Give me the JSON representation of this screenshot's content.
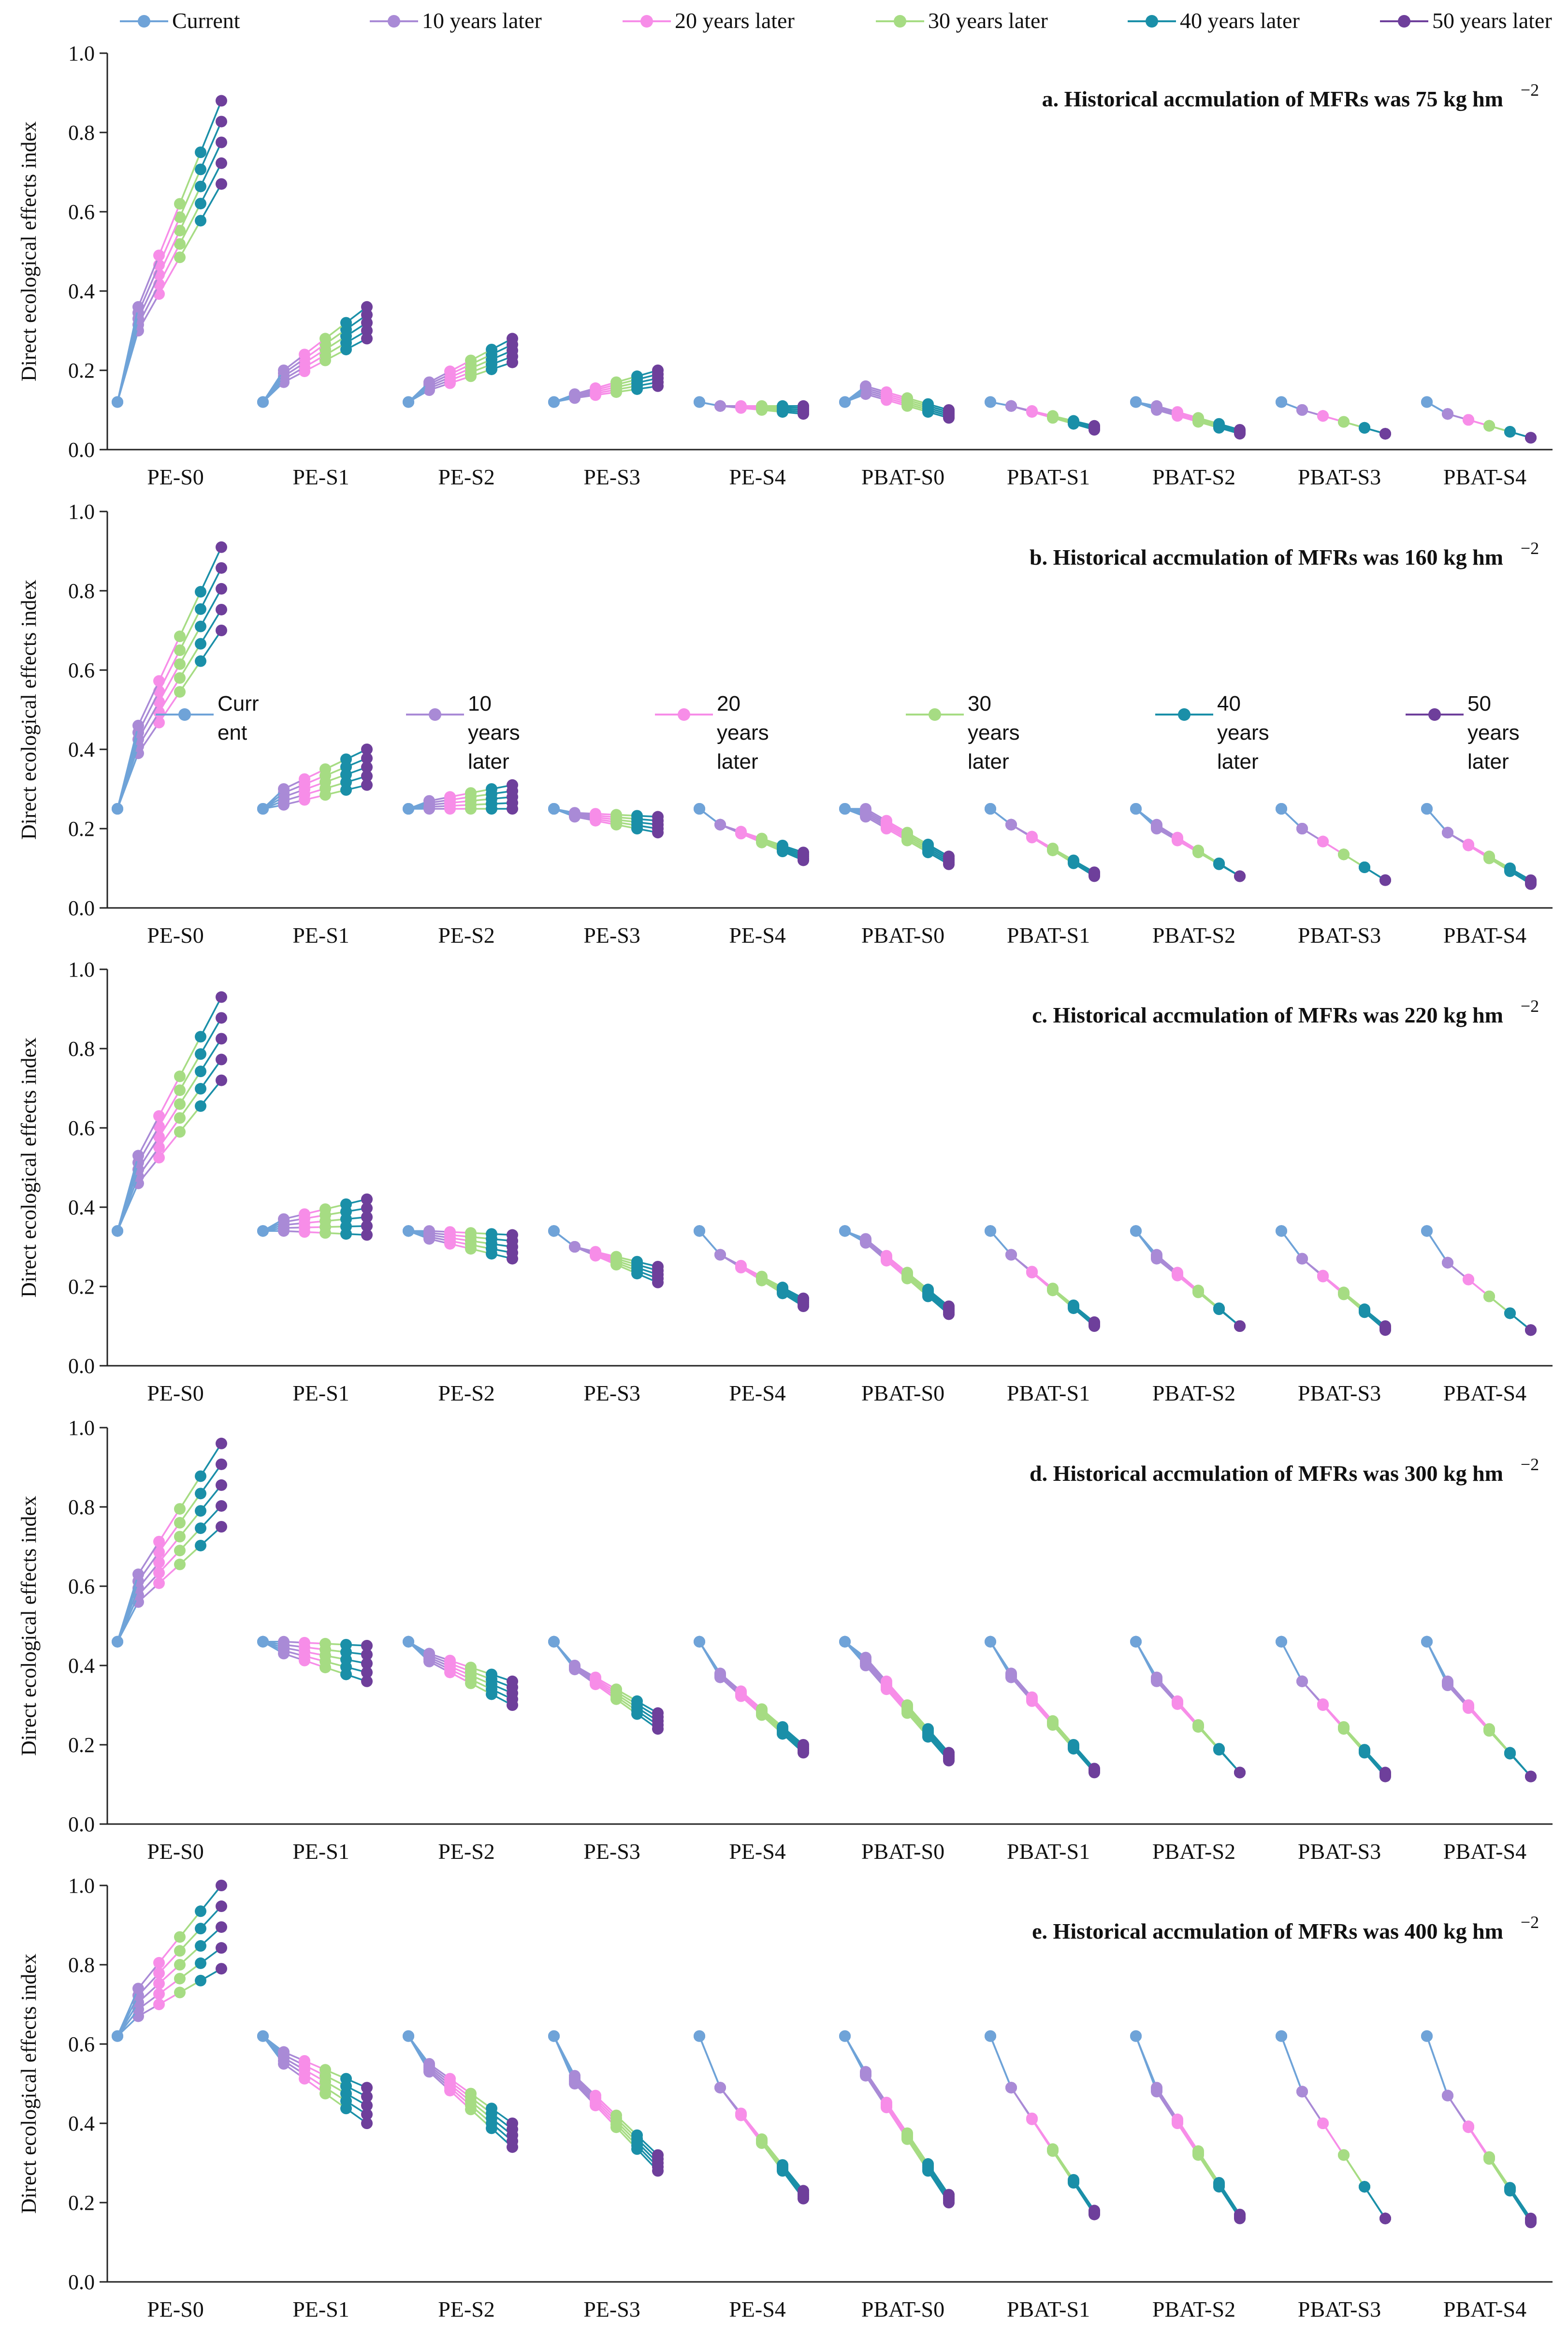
{
  "legend": {
    "items": [
      {
        "label": "Current",
        "color": "#6fa3d8"
      },
      {
        "label": "10 years later",
        "color": "#a98ad6"
      },
      {
        "label": "20 years later",
        "color": "#f78de8"
      },
      {
        "label": "30 years later",
        "color": "#a6dc83"
      },
      {
        "label": "40 years later",
        "color": "#1a8fa8"
      },
      {
        "label": "50 years later",
        "color": "#6e3f9b"
      }
    ],
    "inset_labels": [
      "Curr\nent",
      "10\nyears\nlater",
      "20\nyears\nlater",
      "30\nyears\nlater",
      "40\nyears\nlater",
      "50\nyears\nlater"
    ]
  },
  "chart_data": {
    "type": "line",
    "ylabel": "Direct ecological effects index",
    "ylim": [
      0,
      1.0
    ],
    "yticks": [
      "0.0",
      "0.2",
      "0.4",
      "0.6",
      "0.8",
      "1.0"
    ],
    "categories": [
      "PE-S0",
      "PE-S1",
      "PE-S2",
      "PE-S3",
      "PE-S4",
      "PBAT-S0",
      "PBAT-S1",
      "PBAT-S2",
      "PBAT-S3",
      "PBAT-S4"
    ],
    "panels": [
      {
        "title": "a. Historical accmulation of MFRs was 75 kg hm",
        "title_sup": "−2",
        "current": 0.12,
        "fans": [
          {
            "y10": [
              0.3,
              0.36
            ],
            "y50": [
              0.67,
              0.88
            ]
          },
          {
            "y10": [
              0.17,
              0.2
            ],
            "y50": [
              0.28,
              0.36
            ]
          },
          {
            "y10": [
              0.15,
              0.17
            ],
            "y50": [
              0.22,
              0.28
            ]
          },
          {
            "y10": [
              0.13,
              0.14
            ],
            "y50": [
              0.16,
              0.2
            ]
          },
          {
            "y10": [
              0.11,
              0.11
            ],
            "y50": [
              0.09,
              0.11
            ]
          },
          {
            "y10": [
              0.14,
              0.16
            ],
            "y50": [
              0.08,
              0.1
            ]
          },
          {
            "y10": [
              0.11,
              0.11
            ],
            "y50": [
              0.05,
              0.06
            ]
          },
          {
            "y10": [
              0.1,
              0.11
            ],
            "y50": [
              0.04,
              0.05
            ]
          },
          {
            "y10": [
              0.1,
              0.1
            ],
            "y50": [
              0.04,
              0.04
            ]
          },
          {
            "y10": [
              0.09,
              0.09
            ],
            "y50": [
              0.03,
              0.03
            ]
          }
        ]
      },
      {
        "title": "b. Historical accmulation of MFRs was 160 kg hm",
        "title_sup": "−2",
        "current": 0.25,
        "fans": [
          {
            "y10": [
              0.39,
              0.46
            ],
            "y50": [
              0.7,
              0.91
            ]
          },
          {
            "y10": [
              0.26,
              0.3
            ],
            "y50": [
              0.31,
              0.4
            ]
          },
          {
            "y10": [
              0.25,
              0.27
            ],
            "y50": [
              0.25,
              0.31
            ]
          },
          {
            "y10": [
              0.23,
              0.24
            ],
            "y50": [
              0.19,
              0.23
            ]
          },
          {
            "y10": [
              0.21,
              0.21
            ],
            "y50": [
              0.12,
              0.14
            ]
          },
          {
            "y10": [
              0.23,
              0.25
            ],
            "y50": [
              0.11,
              0.13
            ]
          },
          {
            "y10": [
              0.21,
              0.21
            ],
            "y50": [
              0.08,
              0.09
            ]
          },
          {
            "y10": [
              0.2,
              0.21
            ],
            "y50": [
              0.08,
              0.08
            ]
          },
          {
            "y10": [
              0.2,
              0.2
            ],
            "y50": [
              0.07,
              0.07
            ]
          },
          {
            "y10": [
              0.19,
              0.19
            ],
            "y50": [
              0.06,
              0.07
            ]
          }
        ]
      },
      {
        "title": "c. Historical accmulation of MFRs was 220 kg hm",
        "title_sup": "−2",
        "current": 0.34,
        "fans": [
          {
            "y10": [
              0.46,
              0.53
            ],
            "y50": [
              0.72,
              0.93
            ]
          },
          {
            "y10": [
              0.34,
              0.37
            ],
            "y50": [
              0.33,
              0.42
            ]
          },
          {
            "y10": [
              0.32,
              0.34
            ],
            "y50": [
              0.27,
              0.33
            ]
          },
          {
            "y10": [
              0.3,
              0.3
            ],
            "y50": [
              0.21,
              0.25
            ]
          },
          {
            "y10": [
              0.28,
              0.28
            ],
            "y50": [
              0.15,
              0.17
            ]
          },
          {
            "y10": [
              0.31,
              0.32
            ],
            "y50": [
              0.13,
              0.15
            ]
          },
          {
            "y10": [
              0.28,
              0.28
            ],
            "y50": [
              0.1,
              0.11
            ]
          },
          {
            "y10": [
              0.27,
              0.28
            ],
            "y50": [
              0.1,
              0.1
            ]
          },
          {
            "y10": [
              0.27,
              0.27
            ],
            "y50": [
              0.09,
              0.1
            ]
          },
          {
            "y10": [
              0.26,
              0.26
            ],
            "y50": [
              0.09,
              0.09
            ]
          }
        ]
      },
      {
        "title": "d. Historical accmulation of MFRs was 300 kg hm",
        "title_sup": "−2",
        "current": 0.46,
        "fans": [
          {
            "y10": [
              0.56,
              0.63
            ],
            "y50": [
              0.75,
              0.96
            ]
          },
          {
            "y10": [
              0.43,
              0.46
            ],
            "y50": [
              0.36,
              0.45
            ]
          },
          {
            "y10": [
              0.41,
              0.43
            ],
            "y50": [
              0.3,
              0.36
            ]
          },
          {
            "y10": [
              0.39,
              0.4
            ],
            "y50": [
              0.24,
              0.28
            ]
          },
          {
            "y10": [
              0.37,
              0.38
            ],
            "y50": [
              0.18,
              0.2
            ]
          },
          {
            "y10": [
              0.4,
              0.42
            ],
            "y50": [
              0.16,
              0.18
            ]
          },
          {
            "y10": [
              0.37,
              0.38
            ],
            "y50": [
              0.13,
              0.14
            ]
          },
          {
            "y10": [
              0.36,
              0.37
            ],
            "y50": [
              0.13,
              0.13
            ]
          },
          {
            "y10": [
              0.36,
              0.36
            ],
            "y50": [
              0.12,
              0.13
            ]
          },
          {
            "y10": [
              0.35,
              0.36
            ],
            "y50": [
              0.12,
              0.12
            ]
          }
        ]
      },
      {
        "title": "e. Historical accmulation of MFRs was 400 kg hm",
        "title_sup": "−2",
        "current": 0.62,
        "fans": [
          {
            "y10": [
              0.67,
              0.74
            ],
            "y50": [
              0.79,
              1.0
            ]
          },
          {
            "y10": [
              0.55,
              0.58
            ],
            "y50": [
              0.4,
              0.49
            ]
          },
          {
            "y10": [
              0.53,
              0.55
            ],
            "y50": [
              0.34,
              0.4
            ]
          },
          {
            "y10": [
              0.5,
              0.52
            ],
            "y50": [
              0.28,
              0.32
            ]
          },
          {
            "y10": [
              0.49,
              0.49
            ],
            "y50": [
              0.21,
              0.23
            ]
          },
          {
            "y10": [
              0.52,
              0.53
            ],
            "y50": [
              0.2,
              0.22
            ]
          },
          {
            "y10": [
              0.49,
              0.49
            ],
            "y50": [
              0.17,
              0.18
            ]
          },
          {
            "y10": [
              0.48,
              0.49
            ],
            "y50": [
              0.16,
              0.17
            ]
          },
          {
            "y10": [
              0.48,
              0.48
            ],
            "y50": [
              0.16,
              0.16
            ]
          },
          {
            "y10": [
              0.47,
              0.47
            ],
            "y50": [
              0.15,
              0.16
            ]
          }
        ]
      }
    ]
  }
}
